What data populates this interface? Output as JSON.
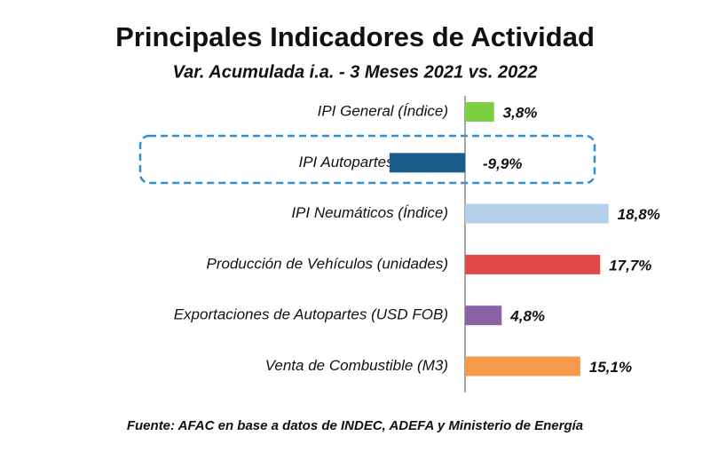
{
  "chart_data": {
    "type": "bar",
    "orientation": "horizontal",
    "title": "Principales Indicadores de Actividad",
    "subtitle": "Var. Acumulada i.a. - 3 Meses 2021 vs. 2022",
    "categories": [
      "IPI General (Índice)",
      "IPI Autopartes (Índice)",
      "IPI Neumáticos (Índice)",
      "Producción de Vehículos (unidades)",
      "Exportaciones de Autopartes (USD FOB)",
      "Venta de Combustible (M3)"
    ],
    "values": [
      3.8,
      -9.9,
      18.8,
      17.7,
      4.8,
      15.1
    ],
    "value_labels": [
      "3,8%",
      "-9,9%",
      "18,8%",
      "17,7%",
      "4,8%",
      "15,1%"
    ],
    "colors": [
      "#7ccf3f",
      "#1b5e8e",
      "#b6d0ea",
      "#e04a4a",
      "#8b62a8",
      "#f6994a"
    ],
    "source": "Fuente: AFAC en base a datos de INDEC, ADEFA y Ministerio de Energía"
  }
}
